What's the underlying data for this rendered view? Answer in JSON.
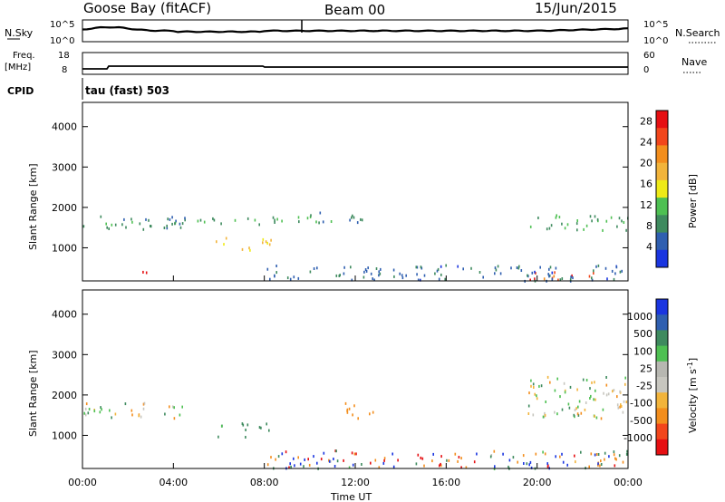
{
  "header": {
    "station": "Goose Bay (fitACF)",
    "beam": "Beam 00",
    "date": "15/Jun/2015"
  },
  "strip_labels": {
    "nsky": "N.Sky",
    "nsky_ticks": [
      "10^5",
      "10^0"
    ],
    "nsearch": "N.Search",
    "nsearch_ticks": [
      "10^5",
      "10^0"
    ],
    "freq": "Freq.",
    "freq_unit": "[MHz]",
    "freq_ticks": [
      "18",
      "8"
    ],
    "nave": "Nave",
    "nave_ticks": [
      "60",
      "0"
    ],
    "cpid": "CPID",
    "cpid_text": "tau (fast) 503"
  },
  "colors": {
    "power": [
      "#1a35e0",
      "#2f5fb0",
      "#3e8a5e",
      "#4ec052",
      "#eeea17",
      "#f2b43b",
      "#f38e1d",
      "#f2461b",
      "#e60f12"
    ],
    "velocity": [
      "#e60f12",
      "#f2461b",
      "#f38e1d",
      "#f2b43b",
      "#c7c6bf",
      "#b7b7b1",
      "#4ec052",
      "#3e8a5e",
      "#2f5fb0",
      "#1a35e0"
    ]
  },
  "chart_data": [
    {
      "type": "heatmap",
      "name": "power",
      "ylabel": "Slant Range [km]",
      "ylim": [
        180,
        4600
      ],
      "yticks": [
        "1000",
        "2000",
        "3000",
        "4000"
      ],
      "xlim": [
        0,
        24
      ],
      "colorbar": {
        "label": "Power [dB]",
        "ticks": [
          "4",
          "8",
          "12",
          "16",
          "20",
          "24",
          "28"
        ],
        "range": [
          0,
          30
        ]
      },
      "echo_regions": [
        {
          "t0": 0.0,
          "t1": 4.5,
          "r0": 1450,
          "r1": 1850,
          "level": 8
        },
        {
          "t0": 4.0,
          "t1": 9.5,
          "r0": 1580,
          "r1": 1780,
          "level": 9
        },
        {
          "t0": 9.0,
          "t1": 13.0,
          "r0": 1650,
          "r1": 1900,
          "level": 8
        },
        {
          "t0": 19.5,
          "t1": 24.0,
          "r0": 1450,
          "r1": 1850,
          "level": 10
        },
        {
          "t0": 5.8,
          "t1": 6.3,
          "r0": 950,
          "r1": 1350,
          "level": 18
        },
        {
          "t0": 7.0,
          "t1": 8.3,
          "r0": 950,
          "r1": 1350,
          "level": 17
        },
        {
          "t0": 2.0,
          "t1": 2.8,
          "r0": 300,
          "r1": 480,
          "level": 27
        },
        {
          "t0": 19.5,
          "t1": 22.5,
          "r0": 230,
          "r1": 450,
          "level": 25
        },
        {
          "t0": 8.0,
          "t1": 24.0,
          "r0": 200,
          "r1": 600,
          "level": 6
        }
      ]
    },
    {
      "type": "heatmap",
      "name": "velocity",
      "ylabel": "Slant Range [km]",
      "ylim": [
        180,
        4600
      ],
      "yticks": [
        "1000",
        "2000",
        "3000",
        "4000"
      ],
      "xlim": [
        0,
        24
      ],
      "xticks": [
        "00:00",
        "04:00",
        "08:00",
        "12:00",
        "16:00",
        "20:00",
        "00:00"
      ],
      "xlabel": "Time UT",
      "colorbar": {
        "label": "Velocity [m s^-1]",
        "ticks": [
          "1000",
          "500",
          "100",
          "25",
          "-25",
          "-100",
          "-500",
          "-1000"
        ]
      },
      "echo_regions": [
        {
          "t0": 0.0,
          "t1": 4.5,
          "r0": 1450,
          "r1": 1850,
          "velocity": 0
        },
        {
          "t0": 19.5,
          "t1": 24.0,
          "r0": 1450,
          "r1": 2500,
          "velocity": 0
        },
        {
          "t0": 5.8,
          "t1": 6.3,
          "r0": 950,
          "r1": 1350,
          "velocity": 150
        },
        {
          "t0": 7.0,
          "t1": 8.3,
          "r0": 950,
          "r1": 1350,
          "velocity": 200
        },
        {
          "t0": 11.5,
          "t1": 13.0,
          "r0": 1450,
          "r1": 1850,
          "velocity": -300
        },
        {
          "t0": 22.0,
          "t1": 23.5,
          "r0": 230,
          "r1": 450,
          "velocity": -400
        },
        {
          "t0": 8.0,
          "t1": 24.0,
          "r0": 200,
          "r1": 650,
          "velocity": 0
        }
      ]
    }
  ]
}
